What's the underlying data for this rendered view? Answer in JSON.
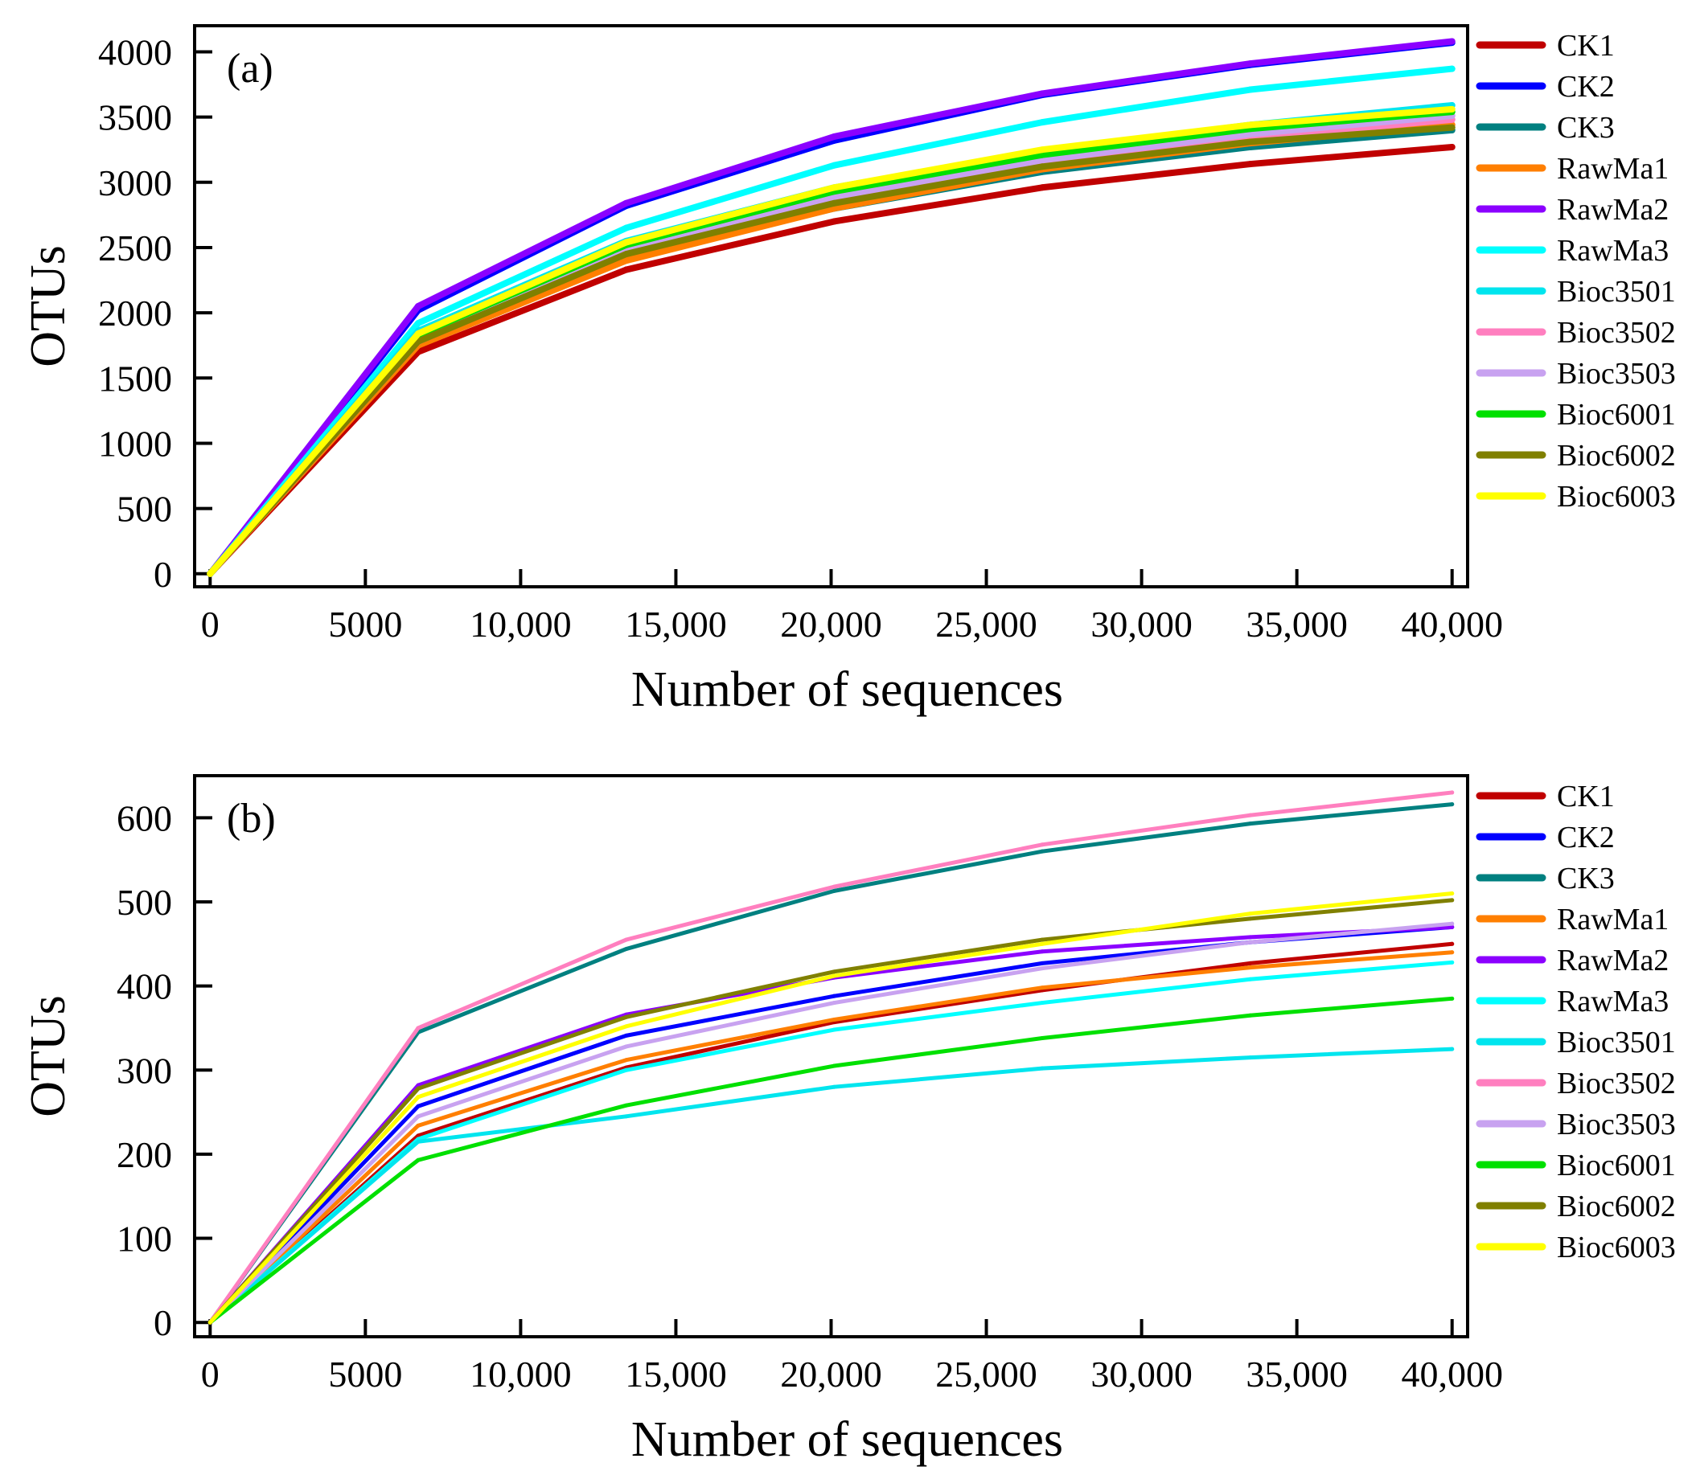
{
  "chart_data": [
    {
      "type": "line",
      "panel_label": "(a)",
      "title": "",
      "xlabel": "Number of sequences",
      "ylabel": "OTUs",
      "xlim": [
        -500,
        40500
      ],
      "ylim": [
        -100,
        4200
      ],
      "x_ticks": [
        0,
        5000,
        10000,
        15000,
        20000,
        25000,
        30000,
        35000,
        40000
      ],
      "x_tick_labels": [
        "0",
        "5000",
        "10,000",
        "15,000",
        "20,000",
        "25,000",
        "30,000",
        "35,000",
        "40,000"
      ],
      "y_ticks": [
        0,
        500,
        1000,
        1500,
        2000,
        2500,
        3000,
        3500,
        4000
      ],
      "y_tick_labels": [
        "0",
        "500",
        "1000",
        "1500",
        "2000",
        "2500",
        "3000",
        "3500",
        "4000"
      ],
      "grid": false,
      "legend_position": "outside-right",
      "x": [
        0,
        6700,
        13400,
        20100,
        26800,
        33500,
        40000
      ],
      "series": [
        {
          "name": "CK1",
          "color": "#c00000",
          "values": [
            0,
            1700,
            2330,
            2700,
            2960,
            3140,
            3270
          ]
        },
        {
          "name": "CK2",
          "color": "#0000ff",
          "values": [
            0,
            2020,
            2820,
            3320,
            3670,
            3900,
            4070
          ]
        },
        {
          "name": "CK3",
          "color": "#008080",
          "values": [
            0,
            1760,
            2420,
            2800,
            3080,
            3270,
            3400
          ]
        },
        {
          "name": "RawMa1",
          "color": "#ff7f00",
          "values": [
            0,
            1750,
            2400,
            2800,
            3100,
            3300,
            3440
          ]
        },
        {
          "name": "RawMa2",
          "color": "#8b00ff",
          "values": [
            0,
            2050,
            2840,
            3350,
            3680,
            3910,
            4080
          ]
        },
        {
          "name": "RawMa3",
          "color": "#00ffff",
          "values": [
            0,
            1920,
            2650,
            3130,
            3460,
            3710,
            3870
          ]
        },
        {
          "name": "Bioc3501",
          "color": "#00e5ee",
          "values": [
            0,
            1860,
            2550,
            2960,
            3240,
            3440,
            3590
          ]
        },
        {
          "name": "Bioc3502",
          "color": "#ff7fbf",
          "values": [
            0,
            1780,
            2460,
            2860,
            3140,
            3340,
            3480
          ]
        },
        {
          "name": "Bioc3503",
          "color": "#c8a2f0",
          "values": [
            0,
            1800,
            2480,
            2890,
            3170,
            3370,
            3510
          ]
        },
        {
          "name": "Bioc6001",
          "color": "#00e000",
          "values": [
            0,
            1830,
            2520,
            2930,
            3210,
            3410,
            3540
          ]
        },
        {
          "name": "Bioc6002",
          "color": "#808000",
          "values": [
            0,
            1780,
            2450,
            2840,
            3120,
            3310,
            3420
          ]
        },
        {
          "name": "Bioc6003",
          "color": "#ffff00",
          "values": [
            0,
            1840,
            2540,
            2960,
            3250,
            3440,
            3560
          ]
        }
      ]
    },
    {
      "type": "line",
      "panel_label": "(b)",
      "title": "",
      "xlabel": "Number of sequences",
      "ylabel": "OTUs",
      "xlim": [
        -500,
        40500
      ],
      "ylim": [
        -17,
        650
      ],
      "x_ticks": [
        0,
        5000,
        10000,
        15000,
        20000,
        25000,
        30000,
        35000,
        40000
      ],
      "x_tick_labels": [
        "0",
        "5000",
        "10,000",
        "15,000",
        "20,000",
        "25,000",
        "30,000",
        "35,000",
        "40,000"
      ],
      "y_ticks": [
        0,
        100,
        200,
        300,
        400,
        500,
        600
      ],
      "y_tick_labels": [
        "0",
        "100",
        "200",
        "300",
        "400",
        "500",
        "600"
      ],
      "grid": false,
      "legend_position": "outside-right",
      "x": [
        0,
        6700,
        13400,
        20100,
        26800,
        33500,
        40000
      ],
      "series": [
        {
          "name": "CK1",
          "color": "#c00000",
          "values": [
            0,
            222,
            303,
            357,
            395,
            427,
            450
          ]
        },
        {
          "name": "CK2",
          "color": "#0000ff",
          "values": [
            0,
            257,
            341,
            388,
            427,
            452,
            470
          ]
        },
        {
          "name": "CK3",
          "color": "#008080",
          "values": [
            0,
            345,
            444,
            513,
            560,
            593,
            616
          ]
        },
        {
          "name": "RawMa1",
          "color": "#ff7f00",
          "values": [
            0,
            234,
            312,
            360,
            398,
            422,
            440
          ]
        },
        {
          "name": "RawMa2",
          "color": "#8b00ff",
          "values": [
            0,
            282,
            366,
            410,
            441,
            458,
            470
          ]
        },
        {
          "name": "RawMa3",
          "color": "#00ffff",
          "values": [
            0,
            218,
            300,
            348,
            380,
            408,
            428
          ]
        },
        {
          "name": "Bioc3501",
          "color": "#00e5ee",
          "values": [
            0,
            215,
            245,
            280,
            302,
            315,
            325
          ]
        },
        {
          "name": "Bioc3502",
          "color": "#ff7fbf",
          "values": [
            0,
            350,
            455,
            518,
            568,
            603,
            630
          ]
        },
        {
          "name": "Bioc3503",
          "color": "#c8a2f0",
          "values": [
            0,
            245,
            328,
            380,
            421,
            452,
            474
          ]
        },
        {
          "name": "Bioc6001",
          "color": "#00e000",
          "values": [
            0,
            193,
            258,
            305,
            338,
            365,
            385
          ]
        },
        {
          "name": "Bioc6002",
          "color": "#808000",
          "values": [
            0,
            278,
            363,
            417,
            455,
            480,
            502
          ]
        },
        {
          "name": "Bioc6003",
          "color": "#ffff00",
          "values": [
            0,
            268,
            352,
            412,
            450,
            486,
            510
          ]
        }
      ]
    }
  ]
}
